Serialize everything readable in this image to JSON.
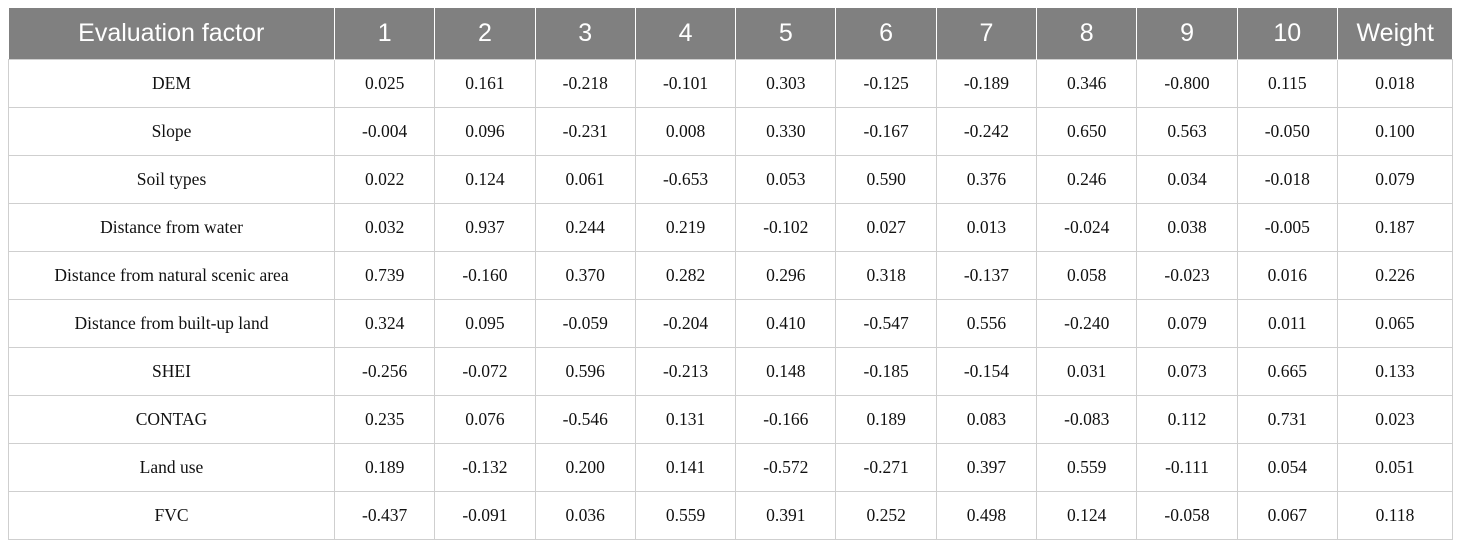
{
  "table": {
    "headers": [
      "Evaluation factor",
      "1",
      "2",
      "3",
      "4",
      "5",
      "6",
      "7",
      "8",
      "9",
      "10",
      "Weight"
    ],
    "rows": [
      [
        "DEM",
        "0.025",
        "0.161",
        "-0.218",
        "-0.101",
        "0.303",
        "-0.125",
        "-0.189",
        "0.346",
        "-0.800",
        "0.115",
        "0.018"
      ],
      [
        "Slope",
        "-0.004",
        "0.096",
        "-0.231",
        "0.008",
        "0.330",
        "-0.167",
        "-0.242",
        "0.650",
        "0.563",
        "-0.050",
        "0.100"
      ],
      [
        "Soil types",
        "0.022",
        "0.124",
        "0.061",
        "-0.653",
        "0.053",
        "0.590",
        "0.376",
        "0.246",
        "0.034",
        "-0.018",
        "0.079"
      ],
      [
        "Distance from water",
        "0.032",
        "0.937",
        "0.244",
        "0.219",
        "-0.102",
        "0.027",
        "0.013",
        "-0.024",
        "0.038",
        "-0.005",
        "0.187"
      ],
      [
        "Distance from natural scenic area",
        "0.739",
        "-0.160",
        "0.370",
        "0.282",
        "0.296",
        "0.318",
        "-0.137",
        "0.058",
        "-0.023",
        "0.016",
        "0.226"
      ],
      [
        "Distance from built-up land",
        "0.324",
        "0.095",
        "-0.059",
        "-0.204",
        "0.410",
        "-0.547",
        "0.556",
        "-0.240",
        "0.079",
        "0.011",
        "0.065"
      ],
      [
        "SHEI",
        "-0.256",
        "-0.072",
        "0.596",
        "-0.213",
        "0.148",
        "-0.185",
        "-0.154",
        "0.031",
        "0.073",
        "0.665",
        "0.133"
      ],
      [
        "CONTAG",
        "0.235",
        "0.076",
        "-0.546",
        "0.131",
        "-0.166",
        "0.189",
        "0.083",
        "-0.083",
        "0.112",
        "0.731",
        "0.023"
      ],
      [
        "Land use",
        "0.189",
        "-0.132",
        "0.200",
        "0.141",
        "-0.572",
        "-0.271",
        "0.397",
        "0.559",
        "-0.111",
        "0.054",
        "0.051"
      ],
      [
        "FVC",
        "-0.437",
        "-0.091",
        "0.036",
        "0.559",
        "0.391",
        "0.252",
        "0.498",
        "0.124",
        "-0.058",
        "0.067",
        "0.118"
      ]
    ]
  },
  "colors": {
    "header_background": "#808080",
    "header_text": "#ffffff",
    "grid_line": "#cfcfcf"
  }
}
